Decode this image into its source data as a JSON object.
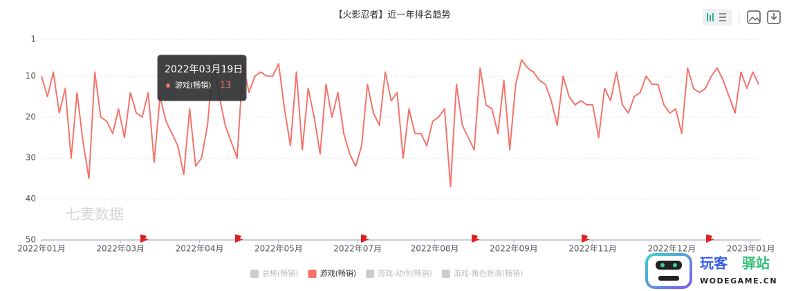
{
  "chart_data": {
    "type": "line",
    "title": "【火影忍者】近一年排名趋势",
    "x": [
      "2022-01-01",
      "2022-01-04",
      "2022-01-07",
      "2022-01-10",
      "2022-01-13",
      "2022-01-16",
      "2022-01-19",
      "2022-01-22",
      "2022-01-25",
      "2022-01-28",
      "2022-01-31",
      "2022-02-03",
      "2022-02-06",
      "2022-02-09",
      "2022-02-12",
      "2022-02-15",
      "2022-02-18",
      "2022-02-21",
      "2022-02-24",
      "2022-02-27",
      "2022-03-02",
      "2022-03-05",
      "2022-03-08",
      "2022-03-11",
      "2022-03-14",
      "2022-03-17",
      "2022-03-20",
      "2022-03-23",
      "2022-03-26",
      "2022-03-29",
      "2022-04-01",
      "2022-04-04",
      "2022-04-07",
      "2022-04-10",
      "2022-04-13",
      "2022-04-16",
      "2022-04-19",
      "2022-04-22",
      "2022-04-25",
      "2022-04-28",
      "2022-05-01",
      "2022-05-04",
      "2022-05-07",
      "2022-05-10",
      "2022-05-13",
      "2022-05-16",
      "2022-05-19",
      "2022-05-22",
      "2022-05-25",
      "2022-05-28",
      "2022-05-31",
      "2022-06-03",
      "2022-06-06",
      "2022-06-09",
      "2022-06-12",
      "2022-06-15",
      "2022-06-18",
      "2022-06-21",
      "2022-06-24",
      "2022-06-27",
      "2022-06-30",
      "2022-07-03",
      "2022-07-06",
      "2022-07-09",
      "2022-07-12",
      "2022-07-15",
      "2022-07-18",
      "2022-07-21",
      "2022-07-24",
      "2022-07-27",
      "2022-07-30",
      "2022-08-02",
      "2022-08-05",
      "2022-08-08",
      "2022-08-11",
      "2022-08-14",
      "2022-08-17",
      "2022-08-20",
      "2022-08-23",
      "2022-08-26",
      "2022-08-29",
      "2022-09-01",
      "2022-09-04",
      "2022-09-07",
      "2022-09-10",
      "2022-09-13",
      "2022-09-16",
      "2022-09-19",
      "2022-09-22",
      "2022-09-25",
      "2022-09-28",
      "2022-10-01",
      "2022-10-04",
      "2022-10-07",
      "2022-10-10",
      "2022-10-13",
      "2022-10-16",
      "2022-10-19",
      "2022-10-22",
      "2022-10-25",
      "2022-10-28",
      "2022-10-31",
      "2022-11-03",
      "2022-11-06",
      "2022-11-09",
      "2022-11-12",
      "2022-11-15",
      "2022-11-18",
      "2022-11-21",
      "2022-11-24",
      "2022-11-27",
      "2022-11-30",
      "2022-12-03",
      "2022-12-06",
      "2022-12-09",
      "2022-12-12",
      "2022-12-15",
      "2022-12-18",
      "2022-12-21",
      "2022-12-24",
      "2022-12-27",
      "2022-12-30"
    ],
    "series": [
      {
        "name": "游戏(畅销)",
        "color": "#f5736b",
        "values": [
          10,
          15,
          9,
          19,
          13,
          30,
          14,
          26,
          35,
          9,
          20,
          21,
          24,
          18,
          25,
          14,
          19,
          20,
          14,
          31,
          15,
          21,
          24,
          27,
          34,
          18,
          32,
          30,
          22,
          6,
          15,
          22,
          26,
          30,
          7,
          14,
          10,
          9,
          10,
          10,
          7,
          18,
          27,
          9,
          28,
          13,
          20,
          29,
          12,
          20,
          14,
          24,
          29,
          32,
          27,
          12,
          19,
          22,
          9,
          16,
          14,
          30,
          18,
          24,
          24,
          27,
          21,
          20,
          18,
          37,
          12,
          22,
          25,
          28,
          8,
          17,
          18,
          24,
          11,
          28,
          12,
          6,
          8,
          9,
          11,
          12,
          16,
          22,
          10,
          15,
          17,
          16,
          17,
          17,
          25,
          13,
          16,
          9,
          17,
          19,
          15,
          14,
          10,
          12,
          12,
          17,
          19,
          18,
          24,
          8,
          13,
          14,
          13,
          10,
          8,
          11,
          15,
          19,
          9,
          13,
          9,
          12
        ]
      }
    ],
    "legend": [
      {
        "name": "总榜(畅销)",
        "color": "#cccccc"
      },
      {
        "name": "游戏(畅销)",
        "color": "#f5736b"
      },
      {
        "name": "游戏-动作(畅销)",
        "color": "#cccccc"
      },
      {
        "name": "游戏-角色扮演(畅销)",
        "color": "#cccccc"
      }
    ],
    "xlim": [
      "2022-01-01",
      "2022-12-31"
    ],
    "xticks": [
      {
        "value": "2022-01-01",
        "label": "2022年01月"
      },
      {
        "value": "2022-02-10",
        "label": "2022年03月"
      },
      {
        "value": "2022-03-22",
        "label": "2022年04月"
      },
      {
        "value": "2022-05-01",
        "label": "2022年05月"
      },
      {
        "value": "2022-06-10",
        "label": "2022年07月"
      },
      {
        "value": "2022-07-19",
        "label": "2022年08月"
      },
      {
        "value": "2022-08-28",
        "label": "2022年09月"
      },
      {
        "value": "2022-10-07",
        "label": "2022年11月"
      },
      {
        "value": "2022-11-16",
        "label": "2022年12月"
      },
      {
        "value": "2022-12-26",
        "label": "2023年01月"
      }
    ],
    "ylim": [
      1,
      50
    ],
    "y_inverted": true,
    "yticks": [
      1,
      10,
      20,
      30,
      40,
      50
    ],
    "grid": true,
    "tooltip": {
      "title": "2022年03月19日",
      "series": "游戏(畅销)",
      "value": 13
    },
    "watermark": "七麦数据",
    "brand": {
      "name_a": "玩客",
      "name_b": "驿站",
      "site": "WODEGAME.CN"
    }
  }
}
